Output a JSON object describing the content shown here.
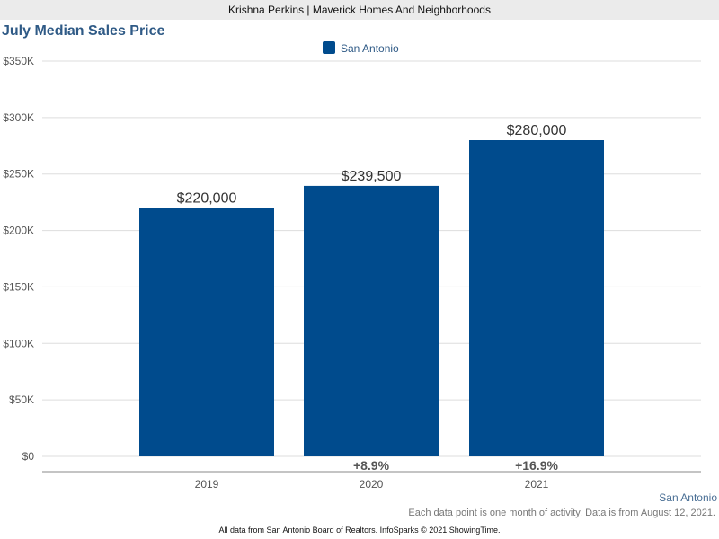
{
  "header": {
    "agent_line": "Krishna Perkins | Maverick Homes And Neighborhoods"
  },
  "chart_data": {
    "type": "bar",
    "title": "July Median Sales Price",
    "categories": [
      "2019",
      "2020",
      "2021"
    ],
    "series": [
      {
        "name": "San Antonio",
        "values": [
          220000,
          239500,
          280000
        ],
        "color": "#004b8d"
      }
    ],
    "value_labels": [
      "$220,000",
      "$239,500",
      "$280,000"
    ],
    "change_labels": [
      "",
      "+8.9%",
      "+16.9%"
    ],
    "y_ticks": [
      0,
      50000,
      100000,
      150000,
      200000,
      250000,
      300000,
      350000
    ],
    "y_tick_labels": [
      "$0",
      "$50K",
      "$100K",
      "$150K",
      "$200K",
      "$250K",
      "$300K",
      "$350K"
    ],
    "ylim": [
      0,
      350000
    ],
    "xlabel": "",
    "ylabel": "",
    "grid": true,
    "legend_position": "top-center"
  },
  "footer": {
    "region_label": "San Antonio",
    "note": "Each data point is one month of activity. Data is from August 12, 2021.",
    "source": "All data from San Antonio Board of Realtors. InfoSparks © 2021 ShowingTime."
  }
}
